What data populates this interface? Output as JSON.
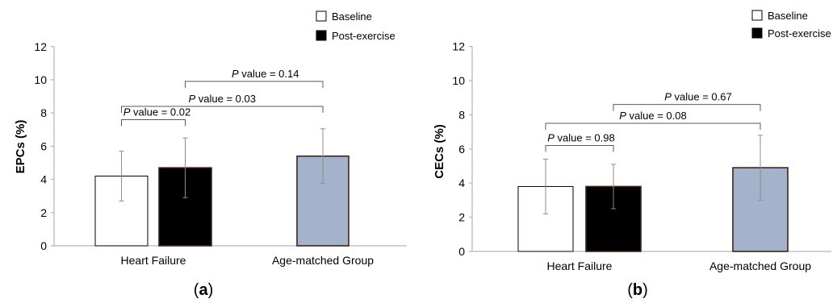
{
  "chart_data": [
    {
      "type": "bar",
      "panel_label": "(a)",
      "ylabel": "EPCs (%)",
      "ylim": [
        0,
        12
      ],
      "yticks": [
        0,
        2,
        4,
        6,
        8,
        10,
        12
      ],
      "categories": [
        "Heart Failure",
        "Age-matched Group"
      ],
      "legend": {
        "position": "top-right",
        "entries": [
          "Baseline",
          "Post-exercise"
        ]
      },
      "bars": [
        {
          "category": "Heart Failure",
          "series": "Baseline",
          "value": 4.2,
          "error": 1.5,
          "color": "#ffffff"
        },
        {
          "category": "Heart Failure",
          "series": "Post-exercise",
          "value": 4.7,
          "error": 1.8,
          "color": "#000000"
        },
        {
          "category": "Age-matched Group",
          "series": "",
          "value": 5.4,
          "error": 1.65,
          "color": "#a3b3cb"
        }
      ],
      "comparisons": [
        {
          "italic": "P",
          "text": " value = 0.02",
          "from_bar": 0,
          "to_bar": 1,
          "level": 7.6
        },
        {
          "italic": "P",
          "text": " value = 0.03",
          "from_bar": 0,
          "to_bar": 2,
          "level": 8.4
        },
        {
          "italic": "P",
          "text": " value = 0.14",
          "from_bar": 1,
          "to_bar": 2,
          "level": 9.9
        }
      ]
    },
    {
      "type": "bar",
      "panel_label": "(b)",
      "ylabel": "CECs (%)",
      "ylim": [
        0,
        12
      ],
      "yticks": [
        0,
        2,
        4,
        6,
        8,
        10,
        12
      ],
      "categories": [
        "Heart Failure",
        "Age-matched Group"
      ],
      "legend": {
        "position": "top-right",
        "entries": [
          "Baseline",
          "Post-exercise"
        ]
      },
      "bars": [
        {
          "category": "Heart Failure",
          "series": "Baseline",
          "value": 3.8,
          "error": 1.6,
          "color": "#ffffff"
        },
        {
          "category": "Heart Failure",
          "series": "Post-exercise",
          "value": 3.8,
          "error": 1.3,
          "color": "#000000"
        },
        {
          "category": "Age-matched Group",
          "series": "",
          "value": 4.9,
          "error": 1.9,
          "color": "#a3b3cb"
        }
      ],
      "comparisons": [
        {
          "italic": "P",
          "text": " value = 0.98",
          "from_bar": 0,
          "to_bar": 1,
          "level": 6.2
        },
        {
          "italic": "P",
          "text": " value = 0.08",
          "from_bar": 0,
          "to_bar": 2,
          "level": 7.5
        },
        {
          "italic": "P",
          "text": " value = 0.67",
          "from_bar": 1,
          "to_bar": 2,
          "level": 8.6
        }
      ]
    }
  ],
  "colors": {
    "axis": "#a6a6a6",
    "bracket": "#595959",
    "error_bar": "#8c8c8c",
    "bar_border": "#3d2318",
    "text": "#000000"
  }
}
